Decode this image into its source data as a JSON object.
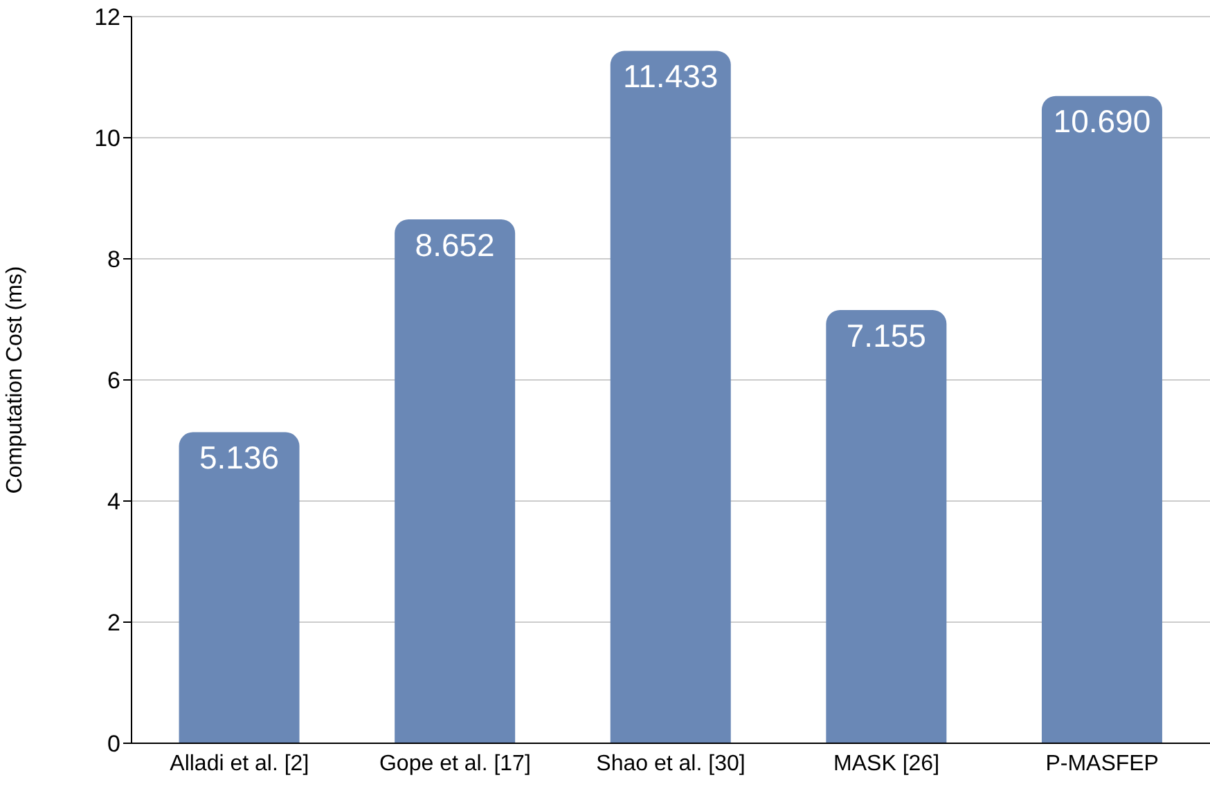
{
  "chart_data": {
    "type": "bar",
    "ylabel": "Computation Cost (ms)",
    "categories": [
      "Alladi et al. [2]",
      "Gope et al. [17]",
      "Shao et al. [30]",
      "MASK [26]",
      "P-MASFEP"
    ],
    "values": [
      5.136,
      8.652,
      11.433,
      7.155,
      10.69
    ],
    "value_labels": [
      "5.136",
      "8.652",
      "11.433",
      "7.155",
      "10.690"
    ],
    "color": "#6a88b6",
    "ylim": [
      0,
      12
    ],
    "yticks": [
      0,
      2,
      4,
      6,
      8,
      10,
      12
    ],
    "grid": "y"
  }
}
